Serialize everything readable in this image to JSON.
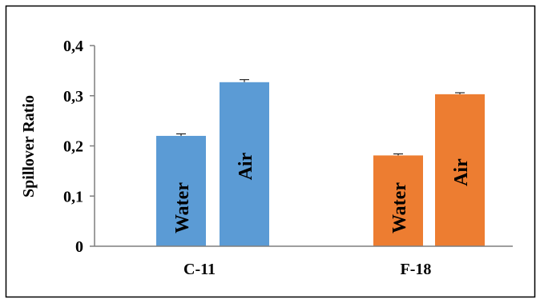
{
  "chart_data": {
    "type": "bar",
    "title": "",
    "xlabel": "",
    "ylabel": "Spillover Ratio",
    "ylim": [
      0,
      0.4
    ],
    "yticks": [
      "0",
      "0,1",
      "0,2",
      "0,3",
      "0,4"
    ],
    "y_tick_values": [
      0,
      0.1,
      0.2,
      0.3,
      0.4
    ],
    "grid": false,
    "legend": "none",
    "categories": [
      "C-11",
      "F-18"
    ],
    "groups": [
      {
        "category": "C-11",
        "color": "#5b9bd5",
        "bars": [
          {
            "label": "Water",
            "value": 0.22,
            "error": 0.004
          },
          {
            "label": "Air",
            "value": 0.327,
            "error": 0.005
          }
        ]
      },
      {
        "category": "F-18",
        "color": "#ed7d31",
        "bars": [
          {
            "label": "Water",
            "value": 0.181,
            "error": 0.003
          },
          {
            "label": "Air",
            "value": 0.303,
            "error": 0.003
          }
        ]
      }
    ],
    "colors": {
      "axis": "#7f7f7f",
      "frame": "#000000",
      "error_bar": "#000000"
    }
  }
}
